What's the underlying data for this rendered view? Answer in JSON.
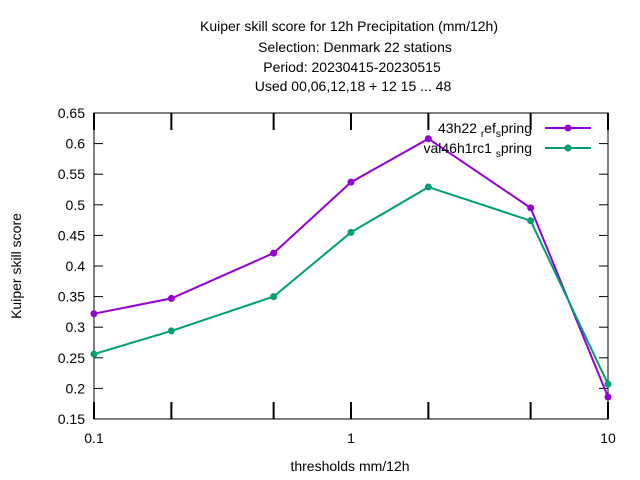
{
  "chart_data": {
    "type": "line",
    "title_lines": [
      "Kuiper skill score  for 12h Precipitation (mm/12h)",
      "Selection: Denmark     22 stations",
      "Period: 20230415-20230515",
      "Used  00,06,12,18  + 12 15 ... 48"
    ],
    "xlabel": "thresholds mm/12h",
    "ylabel": "Kuiper skill score",
    "x_scale": "log",
    "xlim": [
      0.1,
      10
    ],
    "ylim": [
      0.15,
      0.65
    ],
    "x_ticks": [
      0.1,
      1,
      10
    ],
    "x_tick_labels": [
      "0.1",
      "1",
      "10"
    ],
    "x_minor_ticks": [
      0.2,
      0.5,
      2,
      5
    ],
    "y_ticks": [
      0.15,
      0.2,
      0.25,
      0.3,
      0.35,
      0.4,
      0.45,
      0.5,
      0.55,
      0.6,
      0.65
    ],
    "y_tick_labels": [
      "0.15",
      "0.2",
      "0.25",
      "0.3",
      "0.35",
      "0.4",
      "0.45",
      "0.5",
      "0.55",
      "0.6",
      "0.65"
    ],
    "grid": false,
    "legend_position": "top-right",
    "x": [
      0.1,
      0.2,
      0.5,
      1,
      2,
      5,
      10
    ],
    "series": [
      {
        "name": "43h22_ref_spring",
        "legend_parts": [
          [
            "43h22 ",
            "n"
          ],
          [
            "r",
            "sub"
          ],
          [
            "ef",
            "n"
          ],
          [
            "s",
            "sub"
          ],
          [
            "pring",
            "n"
          ]
        ],
        "color": "#9400d3",
        "values": [
          0.322,
          0.347,
          0.421,
          0.537,
          0.608,
          0.495,
          0.186
        ]
      },
      {
        "name": "val46h1rc1_spring",
        "legend_parts": [
          [
            "val46h1rc1 ",
            "n"
          ],
          [
            "s",
            "sub"
          ],
          [
            "pring",
            "n"
          ]
        ],
        "color": "#009e73",
        "values": [
          0.256,
          0.294,
          0.35,
          0.455,
          0.529,
          0.474,
          0.207
        ]
      }
    ]
  }
}
